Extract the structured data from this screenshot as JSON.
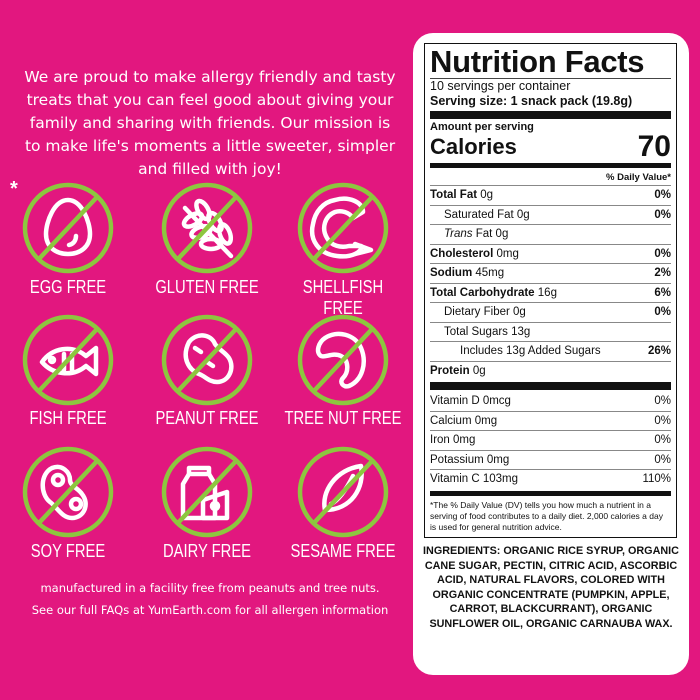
{
  "mission": "We are proud to make allergy friendly and tasty treats that you can feel  good about giving your family and sharing with friends. Our mission is to make life's moments a little sweeter, simpler and filled with joy!",
  "asterisk": "*",
  "colors": {
    "background": "#e2177f",
    "prohibition": "#8dc63f",
    "icon": "#ffffff"
  },
  "allergens": [
    {
      "label": "EGG FREE",
      "icon": "egg-icon"
    },
    {
      "label": "GLUTEN FREE",
      "icon": "wheat-icon"
    },
    {
      "label": "SHELLFISH FREE",
      "icon": "shrimp-icon"
    },
    {
      "label": "FISH FREE",
      "icon": "fish-icon"
    },
    {
      "label": "PEANUT FREE",
      "icon": "peanut-icon"
    },
    {
      "label": "TREE NUT FREE",
      "icon": "cashew-icon"
    },
    {
      "label": "SOY FREE",
      "icon": "soybean-icon"
    },
    {
      "label": "DAIRY FREE",
      "icon": "milk-cheese-icon"
    },
    {
      "label": "SESAME FREE",
      "icon": "sesame-seed-icon"
    }
  ],
  "footer": [
    "manufactured in a facility free from peanuts and tree nuts.",
    "See our full FAQs at YumEarth.com for all allergen information"
  ],
  "nutrition": {
    "title": "Nutrition Facts",
    "servings": "10 servings per container",
    "serving_size": "Serving size: 1 snack pack (19.8g)",
    "amount_per_serving": "Amount per serving",
    "calories_label": "Calories",
    "calories": "70",
    "dv_header": "% Daily Value*",
    "rows": [
      {
        "name": "Total Fat",
        "amount": "0g",
        "dv": "0%",
        "bold": true,
        "indent": 0
      },
      {
        "name": "Saturated Fat",
        "amount": "0g",
        "dv": "0%",
        "bold": false,
        "indent": 1
      },
      {
        "name": "Trans",
        "amount": "Fat 0g",
        "dv": "",
        "bold": false,
        "indent": 1
      },
      {
        "name": "Cholesterol",
        "amount": "0mg",
        "dv": "0%",
        "bold": true,
        "indent": 0
      },
      {
        "name": "Sodium",
        "amount": "45mg",
        "dv": "2%",
        "bold": true,
        "indent": 0
      },
      {
        "name": "Total Carbohydrate",
        "amount": "16g",
        "dv": "6%",
        "bold": true,
        "indent": 0
      },
      {
        "name": "Dietary Fiber",
        "amount": "0g",
        "dv": "0%",
        "bold": false,
        "indent": 1
      },
      {
        "name": "Total Sugars",
        "amount": "13g",
        "dv": "",
        "bold": false,
        "indent": 1
      },
      {
        "name": "Includes 13g Added Sugars",
        "amount": "",
        "dv": "26%",
        "bold": false,
        "indent": 2
      },
      {
        "name": "Protein",
        "amount": "0g",
        "dv": "",
        "bold": true,
        "indent": 0
      }
    ],
    "vitamins": [
      {
        "name": "Vitamin D 0mcg",
        "dv": "0%"
      },
      {
        "name": "Calcium 0mg",
        "dv": "0%"
      },
      {
        "name": "Iron 0mg",
        "dv": "0%"
      },
      {
        "name": "Potassium 0mg",
        "dv": "0%"
      },
      {
        "name": "Vitamin C 103mg",
        "dv": "110%"
      }
    ],
    "footnote": "*The % Daily Value (DV) tells you how much a nutrient in a serving of food contributes to a daily diet. 2,000 calories a day is used for general nutrition advice."
  },
  "ingredients": "INGREDIENTS: ORGANIC RICE SYRUP, ORGANIC CANE SUGAR, PECTIN, CITRIC ACID, ASCORBIC ACID, NATURAL FLAVORS, COLORED WITH ORGANIC CONCENTRATE (PUMPKIN, APPLE, CARROT, BLACKCURRANT), ORGANIC SUNFLOWER OIL, ORGANIC CARNAUBA WAX."
}
